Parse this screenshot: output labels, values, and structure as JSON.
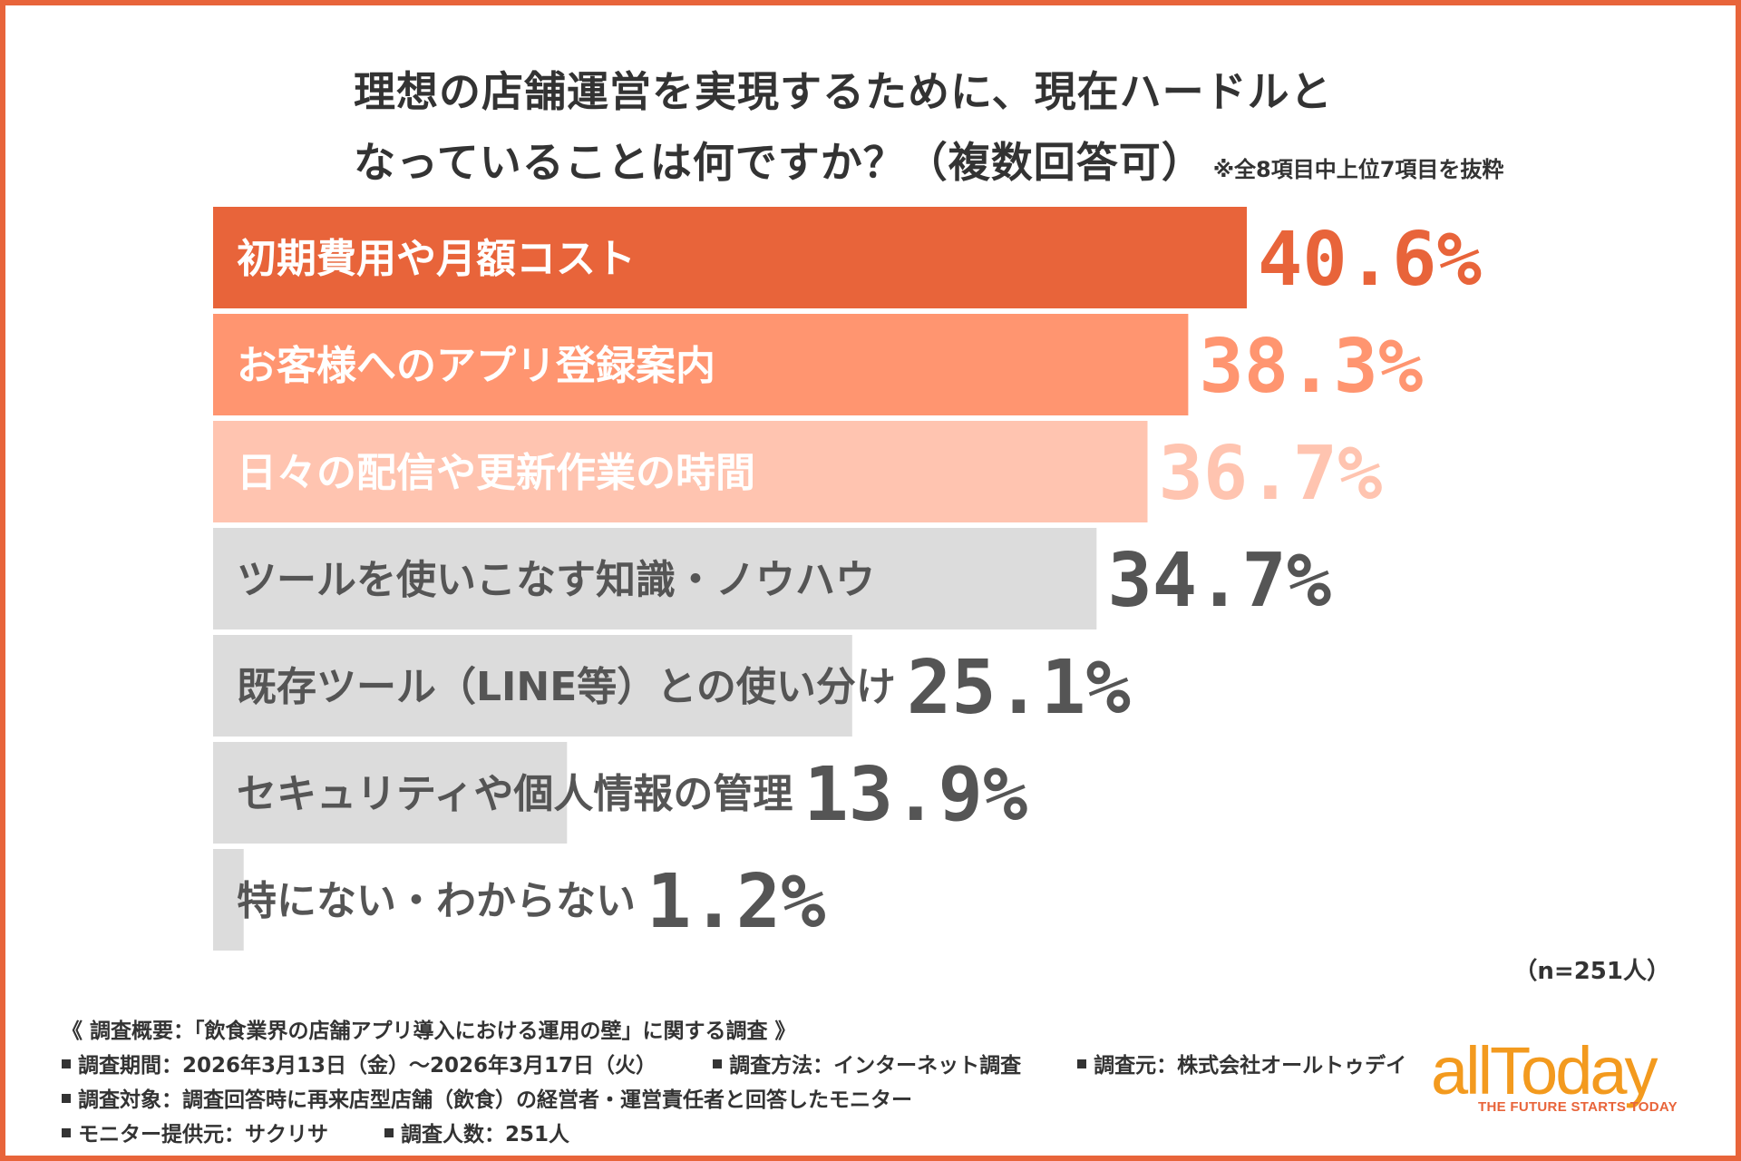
{
  "title": {
    "line1": "理想の店舗運営を実現するために、現在ハードルと",
    "line2": "なっていることは何ですか？（複数回答可）",
    "note": "※全8項目中上位7項目を抜粋"
  },
  "chart_data": {
    "type": "bar",
    "orientation": "horizontal",
    "unit": "%",
    "categories": [
      "初期費用や月額コスト",
      "お客様へのアプリ登録案内",
      "日々の配信や更新作業の時間",
      "ツールを使いこなす知識・ノウハウ",
      "既存ツール（LINE等）との使い分け",
      "セキュリティや個人情報の管理",
      "特にない・わからない"
    ],
    "values": [
      40.6,
      38.3,
      36.7,
      34.7,
      25.1,
      13.9,
      1.2
    ],
    "value_labels": [
      "40.6%",
      "38.3%",
      "36.7%",
      "34.7%",
      "25.1%",
      "13.9%",
      "1.2%"
    ],
    "colors": [
      "#E8643A",
      "#FF9570",
      "#FFC4B0",
      "#DCDCDC",
      "#DCDCDC",
      "#DCDCDC",
      "#DCDCDC"
    ],
    "label_colors": [
      "#FFFFFF",
      "#FFFFFF",
      "#FFFFFF",
      "#555555",
      "#555555",
      "#555555",
      "#555555"
    ],
    "value_colors": [
      "#E8643A",
      "#FF9570",
      "#FFC4B0",
      "#555555",
      "#555555",
      "#555555",
      "#555555"
    ],
    "xlim": [
      0,
      47
    ]
  },
  "sample": "（n=251人）",
  "survey": {
    "heading": "《 調査概要：「飲食業界の店舗アプリ導入における運用の壁」に関する調査 》",
    "period": "調査期間：2026年3月13日（金）～2026年3月17日（火）",
    "method": "調査方法：インターネット調査",
    "source": "調査元：株式会社オールトゥデイ",
    "target": "調査対象：調査回答時に再来店型店舗（飲食）の経営者・運営責任者と回答したモニター",
    "provider": "モニター提供元：サクリサ",
    "count": "調査人数：251人"
  },
  "logo": {
    "name": "allToday",
    "tagline": "THE FUTURE STARTS TODAY"
  },
  "colors": {
    "accent": "#E8643A",
    "logo": "#F39A1E",
    "text": "#333333"
  }
}
